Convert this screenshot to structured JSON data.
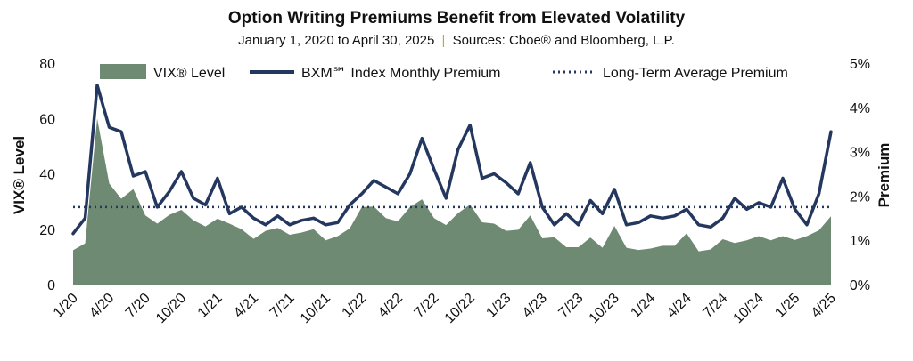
{
  "chart_data": {
    "type": "area",
    "title": "Option Writing Premiums Benefit from Elevated Volatility",
    "subtitle_period": "January 1, 2020 to April 30, 2025",
    "subtitle_separator": "|",
    "subtitle_sources": "Sources: Cboe® and Bloomberg, L.P.",
    "ylabel_left": "VIX® Level",
    "ylabel_right": "Premium",
    "ylim_left": [
      0,
      80
    ],
    "ylim_right": [
      0,
      5
    ],
    "left_ticks": [
      "0",
      "20",
      "40",
      "60",
      "80"
    ],
    "right_ticks": [
      "0%",
      "1%",
      "2%",
      "3%",
      "4%",
      "5%"
    ],
    "x_ticks": [
      "1/20",
      "4/20",
      "7/20",
      "10/20",
      "1/21",
      "4/21",
      "7/21",
      "10/21",
      "1/22",
      "4/22",
      "7/22",
      "10/22",
      "1/23",
      "4/23",
      "7/23",
      "10/23",
      "1/24",
      "4/24",
      "7/24",
      "10/24",
      "1/25",
      "4/25"
    ],
    "legend_position": "top",
    "grid": false,
    "series": [
      {
        "name": "VIX® Level",
        "kind": "area",
        "axis": "left",
        "color": "#6f8a72",
        "values": [
          12.4,
          14.9,
          60.0,
          36.5,
          31.0,
          34.5,
          25.0,
          22.0,
          25.2,
          27.0,
          23.2,
          21.0,
          23.8,
          22.0,
          20.0,
          16.5,
          19.4,
          20.5,
          18.0,
          18.8,
          20.0,
          16.0,
          17.5,
          20.3,
          28.0,
          28.2,
          24.0,
          22.8,
          28.0,
          30.8,
          24.0,
          21.5,
          25.8,
          28.9,
          22.5,
          22.0,
          19.4,
          19.8,
          25.0,
          16.7,
          17.1,
          13.5,
          13.5,
          17.0,
          13.3,
          21.2,
          13.3,
          12.5,
          13.0,
          14.0,
          14.0,
          18.5,
          12.0,
          12.7,
          16.4,
          15.0,
          16.0,
          17.5,
          16.0,
          17.5,
          16.1,
          17.5,
          19.6,
          24.7
        ]
      },
      {
        "name": "BXM℠ Index Monthly Premium",
        "kind": "line",
        "axis": "right",
        "color": "#24375e",
        "values": [
          1.15,
          1.5,
          4.5,
          3.55,
          3.45,
          2.45,
          2.55,
          1.75,
          2.1,
          2.55,
          1.95,
          1.8,
          2.4,
          1.6,
          1.75,
          1.5,
          1.35,
          1.55,
          1.35,
          1.45,
          1.5,
          1.35,
          1.4,
          1.8,
          2.05,
          2.35,
          2.2,
          2.05,
          2.5,
          3.3,
          2.6,
          1.95,
          3.05,
          3.6,
          2.4,
          2.5,
          2.3,
          2.05,
          2.75,
          1.75,
          1.35,
          1.6,
          1.35,
          1.9,
          1.6,
          2.15,
          1.35,
          1.4,
          1.55,
          1.5,
          1.55,
          1.7,
          1.35,
          1.3,
          1.5,
          1.95,
          1.7,
          1.85,
          1.75,
          2.4,
          1.7,
          1.35,
          2.05,
          3.45
        ]
      },
      {
        "name": "Long-Term Average Premium",
        "kind": "hline",
        "axis": "right",
        "color": "#24375e",
        "value": 1.75
      }
    ]
  }
}
